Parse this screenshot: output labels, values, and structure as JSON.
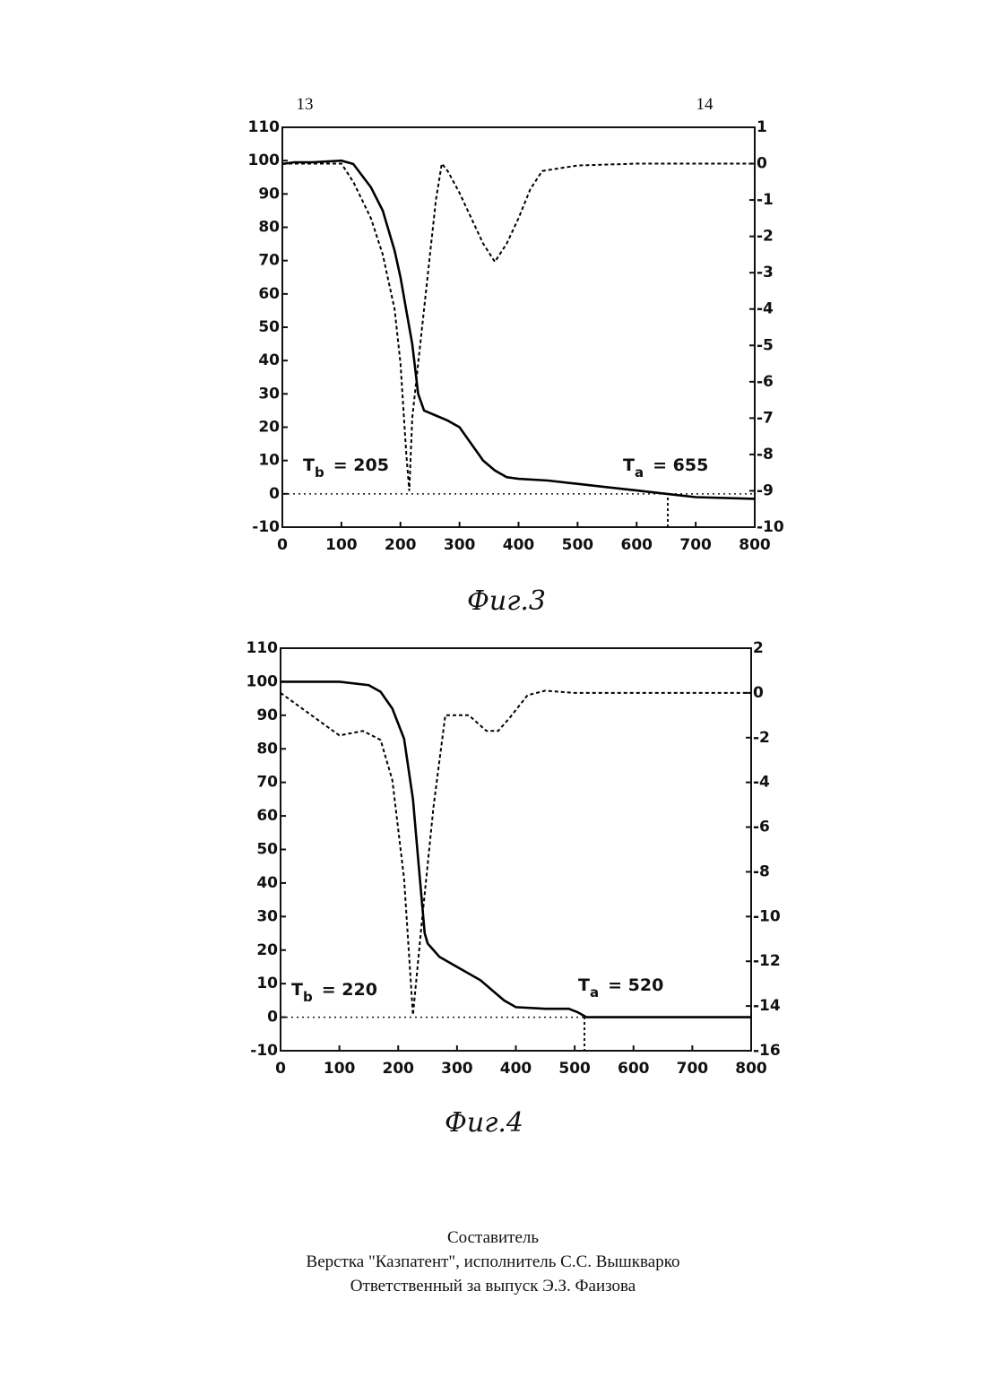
{
  "header": {
    "left_page": "13",
    "right_page": "14"
  },
  "chart_data": [
    {
      "type": "line",
      "caption": "Фиг.3",
      "xlim": [
        0,
        800
      ],
      "xticks": [
        0,
        100,
        200,
        300,
        400,
        500,
        600,
        700,
        800
      ],
      "ylim": [
        -10,
        110
      ],
      "yticks": [
        -10,
        0,
        10,
        20,
        30,
        40,
        50,
        60,
        70,
        80,
        90,
        100,
        110
      ],
      "y2lim": [
        -10,
        1
      ],
      "y2ticks": [
        1,
        0,
        -1,
        -2,
        -3,
        -4,
        -5,
        -6,
        -7,
        -8,
        -9,
        -10
      ],
      "annotations": [
        {
          "symbol": "T",
          "subscript": "b",
          "text": "= 205"
        },
        {
          "symbol": "T",
          "subscript": "a",
          "text": "= 655"
        }
      ],
      "series": [
        {
          "color": "#000",
          "dashed": false,
          "x": [
            0,
            20,
            50,
            100,
            120,
            150,
            170,
            190,
            200,
            210,
            220,
            230,
            240,
            260,
            280,
            300,
            320,
            340,
            360,
            380,
            400,
            450,
            500,
            550,
            600,
            650,
            700,
            800
          ],
          "values": [
            99,
            99.5,
            99.5,
            100,
            99,
            92,
            85,
            73,
            65,
            55,
            45,
            30,
            25,
            23.5,
            22,
            20,
            15,
            10,
            7,
            5,
            4.5,
            4,
            3,
            2,
            1,
            0,
            -1,
            -1.5
          ]
        },
        {
          "color": "#000",
          "dashed": true,
          "axis": "y2",
          "x": [
            0,
            100,
            120,
            150,
            170,
            190,
            200,
            210,
            215,
            220,
            240,
            260,
            270,
            280,
            300,
            320,
            340,
            360,
            380,
            400,
            420,
            440,
            500,
            600,
            800
          ],
          "values": [
            0,
            0,
            -0.5,
            -1.5,
            -2.5,
            -4,
            -5.5,
            -8,
            -9,
            -7,
            -4,
            -1,
            0,
            -0.2,
            -0.8,
            -1.5,
            -2.2,
            -2.7,
            -2.2,
            -1.5,
            -0.7,
            -0.2,
            -0.05,
            0,
            0
          ]
        }
      ]
    },
    {
      "type": "line",
      "caption": "Фиг.4",
      "xlim": [
        0,
        800
      ],
      "xticks": [
        0,
        100,
        200,
        300,
        400,
        500,
        600,
        700,
        800
      ],
      "ylim": [
        -10,
        110
      ],
      "yticks": [
        -10,
        0,
        10,
        20,
        30,
        40,
        50,
        60,
        70,
        80,
        90,
        100,
        110
      ],
      "y2lim": [
        -16,
        2
      ],
      "y2ticks": [
        2,
        0,
        -2,
        -4,
        -6,
        -8,
        -10,
        -12,
        -14,
        -16
      ],
      "annotations": [
        {
          "symbol": "T",
          "subscript": "b",
          "text": "= 220"
        },
        {
          "symbol": "T",
          "subscript": "a",
          "text": "= 520"
        }
      ],
      "series": [
        {
          "color": "#000",
          "dashed": false,
          "x": [
            0,
            50,
            100,
            150,
            170,
            190,
            210,
            225,
            235,
            245,
            250,
            270,
            300,
            340,
            360,
            380,
            400,
            450,
            490,
            505,
            520,
            800
          ],
          "values": [
            100,
            100,
            100,
            99,
            97,
            92,
            83,
            65,
            45,
            25,
            22,
            18,
            15,
            11,
            8,
            5,
            3,
            2.5,
            2.5,
            1.5,
            0,
            0
          ]
        },
        {
          "color": "#000",
          "dashed": true,
          "axis": "y2",
          "x": [
            0,
            100,
            140,
            170,
            190,
            210,
            225,
            240,
            260,
            280,
            320,
            350,
            370,
            390,
            420,
            450,
            500,
            800
          ],
          "values": [
            0,
            -1.9,
            -1.7,
            -2.1,
            -3.9,
            -8.3,
            -14.4,
            -10.3,
            -5.1,
            -1,
            -1,
            -1.7,
            -1.7,
            -1.1,
            -0.1,
            0.1,
            0,
            0
          ]
        }
      ]
    }
  ],
  "footer": [
    "Составитель",
    "Верстка \"Казпатент\", исполнитель С.С. Вышкварко",
    "Ответственный за выпуск Э.З. Фаизова"
  ]
}
